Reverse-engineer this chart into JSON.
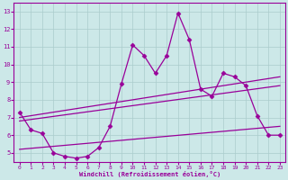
{
  "xlabel": "Windchill (Refroidissement éolien,°C)",
  "xlim": [
    -0.5,
    23.5
  ],
  "ylim": [
    4.5,
    13.5
  ],
  "xticks": [
    0,
    1,
    2,
    3,
    4,
    5,
    6,
    7,
    8,
    9,
    10,
    11,
    12,
    13,
    14,
    15,
    16,
    17,
    18,
    19,
    20,
    21,
    22,
    23
  ],
  "yticks": [
    5,
    6,
    7,
    8,
    9,
    10,
    11,
    12,
    13
  ],
  "background_color": "#cce8e8",
  "grid_color": "#aacccc",
  "line_color": "#990099",
  "line1_x": [
    0,
    1,
    2,
    3,
    4,
    5,
    6,
    7,
    8,
    9,
    10,
    11,
    12,
    13,
    14,
    15,
    16,
    17,
    18,
    19,
    20,
    21,
    22,
    23
  ],
  "line1_y": [
    7.3,
    6.3,
    6.1,
    5.0,
    4.8,
    4.7,
    4.8,
    5.3,
    6.5,
    8.9,
    11.1,
    10.5,
    9.5,
    10.5,
    12.9,
    11.4,
    8.6,
    8.2,
    9.5,
    9.3,
    8.8,
    7.1,
    6.0,
    6.0
  ],
  "line2_x": [
    0,
    23
  ],
  "line2_y": [
    7.0,
    9.3
  ],
  "line3_x": [
    0,
    23
  ],
  "line3_y": [
    6.8,
    8.8
  ],
  "line4_x": [
    0,
    23
  ],
  "line4_y": [
    5.2,
    6.5
  ]
}
